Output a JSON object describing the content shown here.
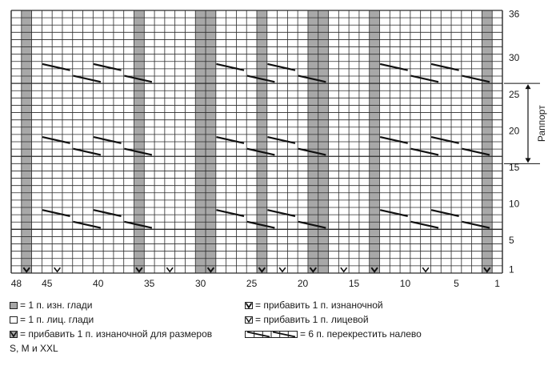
{
  "chart": {
    "stitches": 48,
    "rows": 36,
    "purl_columns": [
      1,
      3,
      4,
      5,
      7,
      8,
      9,
      11,
      12,
      13,
      14,
      15,
      17,
      18,
      19,
      20,
      21,
      22,
      23,
      25,
      26,
      27,
      28,
      29,
      30,
      31,
      33,
      34,
      35,
      36,
      37,
      39,
      40,
      41,
      42,
      43,
      44,
      45,
      47,
      48
    ],
    "grey_columns": [
      2,
      13,
      18,
      19,
      24,
      29,
      30,
      36,
      47
    ],
    "row_labels": [
      "36",
      "30",
      "25",
      "20",
      "15",
      "10",
      "5",
      "1"
    ],
    "col_labels": [
      "48",
      "45",
      "40",
      "35",
      "30",
      "25",
      "20",
      "15",
      "10",
      "5",
      "1"
    ],
    "repeat_label": "Раппорт",
    "repeat_rows": [
      16,
      26
    ]
  },
  "legend": {
    "grey": "= 1 п. изн. глади",
    "white": "= 1 п. лиц. глади",
    "inc_purl_sizes": "= прибавить 1 п. изнаночной для размеров",
    "inc_purl_sizes_2": "S, M и XXL",
    "inc_purl": "= прибавить 1 п. изнаночной",
    "inc_knit": "= прибавить 1 п. лицевой",
    "cable": "= 6 п. перекрестить налево"
  }
}
